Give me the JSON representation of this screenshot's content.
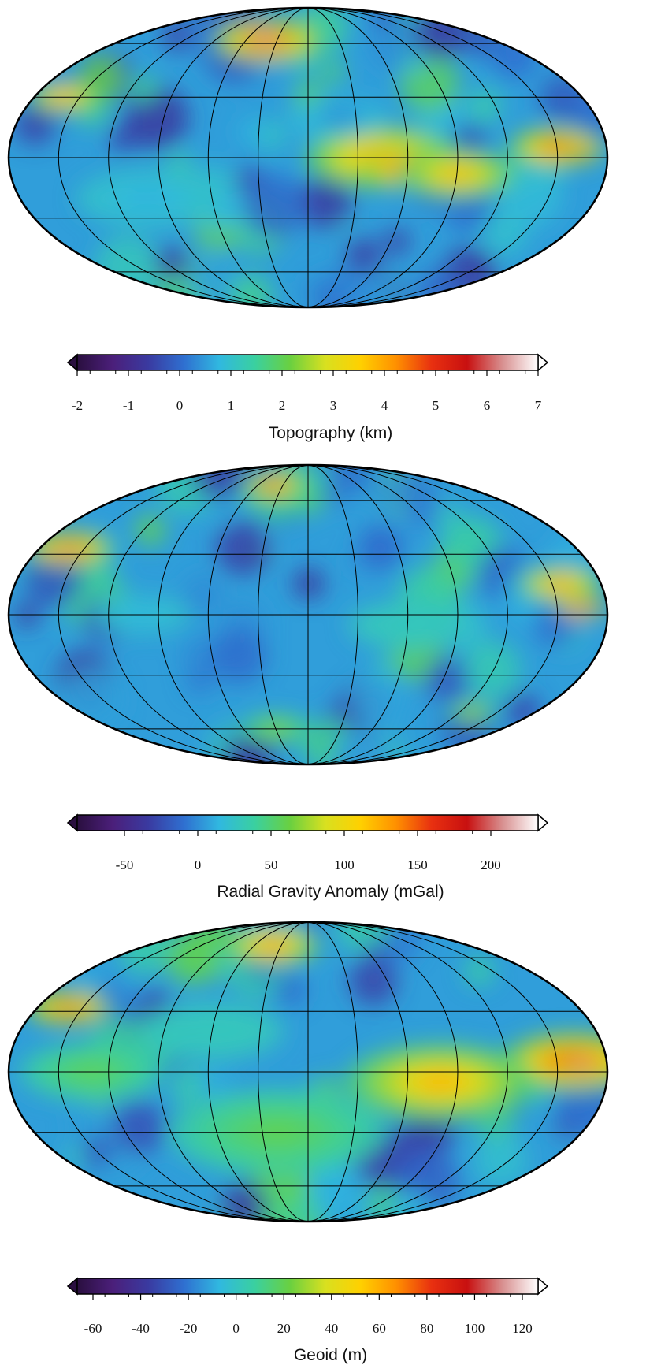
{
  "colorscale": [
    "#2a0f3f",
    "#4b1f7a",
    "#3a3aa0",
    "#2f6fd0",
    "#30b8e0",
    "#3ad0a0",
    "#6ad040",
    "#d8e020",
    "#ffd000",
    "#ff9000",
    "#e83010",
    "#c81010",
    "#d89090",
    "#ffffff"
  ],
  "panels": [
    {
      "title": "Topography (km)",
      "ticks": [
        "-2",
        "-1",
        "0",
        "1",
        "2",
        "3",
        "4",
        "5",
        "6",
        "7"
      ],
      "blobs": [
        {
          "lon": -40,
          "lat": 62,
          "r": 0.09,
          "v": 0.85
        },
        {
          "lon": -45,
          "lat": 66,
          "r": 0.05,
          "v": 1.0
        },
        {
          "lon": -160,
          "lat": 30,
          "r": 0.06,
          "v": 0.7
        },
        {
          "lon": 45,
          "lat": 0,
          "r": 0.13,
          "v": 0.7
        },
        {
          "lon": 60,
          "lat": -5,
          "r": 0.08,
          "v": 0.8
        },
        {
          "lon": 90,
          "lat": -8,
          "r": 0.1,
          "v": 0.65
        },
        {
          "lon": 150,
          "lat": 5,
          "r": 0.08,
          "v": 0.75
        },
        {
          "lon": 165,
          "lat": 3,
          "r": 0.03,
          "v": 0.95
        },
        {
          "lon": -100,
          "lat": -20,
          "r": 0.12,
          "v": 0.3
        },
        {
          "lon": 20,
          "lat": 20,
          "r": 0.08,
          "v": 0.25
        }
      ]
    },
    {
      "title": "Radial Gravity Anomaly (mGal)",
      "ticks": [
        "-50",
        "0",
        "50",
        "100",
        "150",
        "200"
      ],
      "blobs": [
        {
          "lon": -160,
          "lat": 33,
          "r": 0.07,
          "v": 0.85
        },
        {
          "lon": -162,
          "lat": 34,
          "r": 0.03,
          "v": 1.0
        },
        {
          "lon": 165,
          "lat": 3,
          "r": 0.04,
          "v": 1.0
        },
        {
          "lon": 155,
          "lat": 15,
          "r": 0.07,
          "v": 0.7
        },
        {
          "lon": -40,
          "lat": 70,
          "r": 0.05,
          "v": 0.8
        },
        {
          "lon": 60,
          "lat": -5,
          "r": 0.1,
          "v": 0.35
        },
        {
          "lon": -100,
          "lat": 0,
          "r": 0.08,
          "v": 0.3
        },
        {
          "lon": -30,
          "lat": -60,
          "r": 0.06,
          "v": 0.5
        },
        {
          "lon": 130,
          "lat": -50,
          "r": 0.04,
          "v": 0.55
        }
      ]
    },
    {
      "title": "Geoid (m)",
      "ticks": [
        "-60",
        "-40",
        "-20",
        "0",
        "20",
        "40",
        "60",
        "80",
        "100",
        "120"
      ],
      "blobs": [
        {
          "lon": -160,
          "lat": 32,
          "r": 0.07,
          "v": 0.85
        },
        {
          "lon": -162,
          "lat": 33,
          "r": 0.03,
          "v": 0.95
        },
        {
          "lon": 160,
          "lat": 5,
          "r": 0.12,
          "v": 0.8
        },
        {
          "lon": 165,
          "lat": 2,
          "r": 0.04,
          "v": 1.0
        },
        {
          "lon": 80,
          "lat": -5,
          "r": 0.16,
          "v": 0.65
        },
        {
          "lon": -20,
          "lat": -30,
          "r": 0.18,
          "v": 0.45
        },
        {
          "lon": -40,
          "lat": 68,
          "r": 0.08,
          "v": 0.7
        },
        {
          "lon": -130,
          "lat": 0,
          "r": 0.12,
          "v": 0.45
        },
        {
          "lon": -60,
          "lat": 20,
          "r": 0.12,
          "v": 0.35
        }
      ]
    }
  ]
}
